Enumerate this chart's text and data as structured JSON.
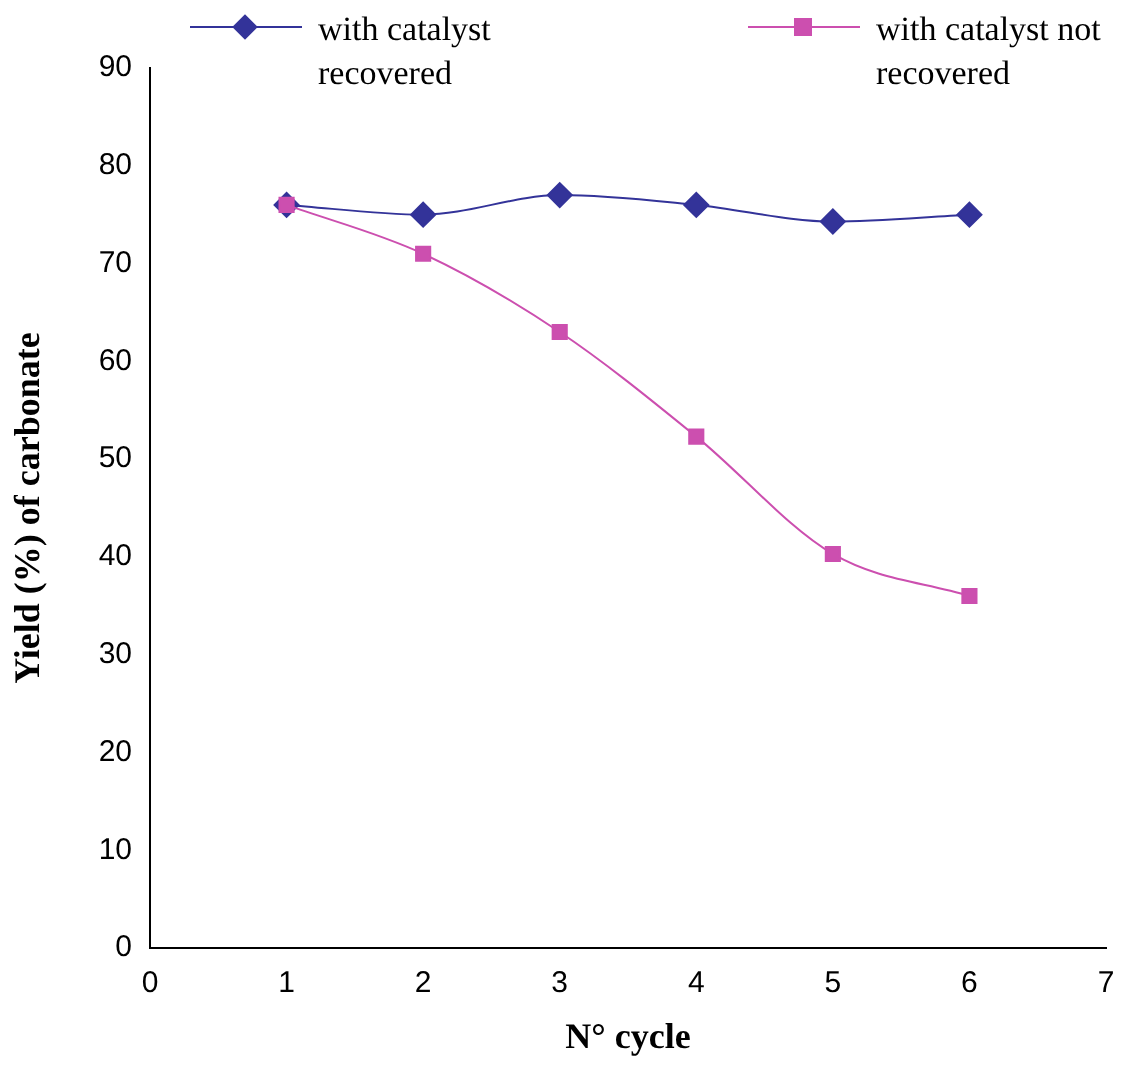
{
  "chart_data": {
    "type": "line",
    "xlabel": "N° cycle",
    "ylabel": "Yield (%) of carbonate",
    "x": [
      1,
      2,
      3,
      4,
      5,
      6
    ],
    "xlim": [
      0,
      7
    ],
    "xticks": [
      0,
      1,
      2,
      3,
      4,
      5,
      6,
      7
    ],
    "ylim": [
      0,
      90
    ],
    "yticks": [
      0,
      10,
      20,
      30,
      40,
      50,
      60,
      70,
      80,
      90
    ],
    "grid": false,
    "legend": "top",
    "series": [
      {
        "name": "with catalyst recovered",
        "color": "#333399",
        "marker": "diamond",
        "values": [
          76,
          75,
          77,
          76,
          74.3,
          75
        ]
      },
      {
        "name": "with catalyst not recovered",
        "color": "#cc4faf",
        "marker": "square",
        "values": [
          76,
          71,
          63,
          52.3,
          40.3,
          36
        ]
      }
    ]
  }
}
